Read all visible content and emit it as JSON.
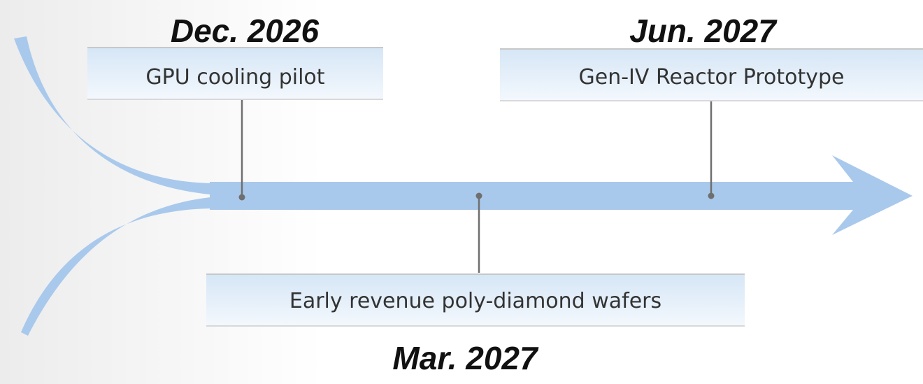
{
  "milestones": [
    {
      "date": "Dec. 2026",
      "label": "GPU cooling pilot"
    },
    {
      "date": "Mar. 2027",
      "label": "Early revenue poly-diamond wafers"
    },
    {
      "date": "Jun. 2027",
      "label": "Gen-IV Reactor Prototype"
    }
  ]
}
